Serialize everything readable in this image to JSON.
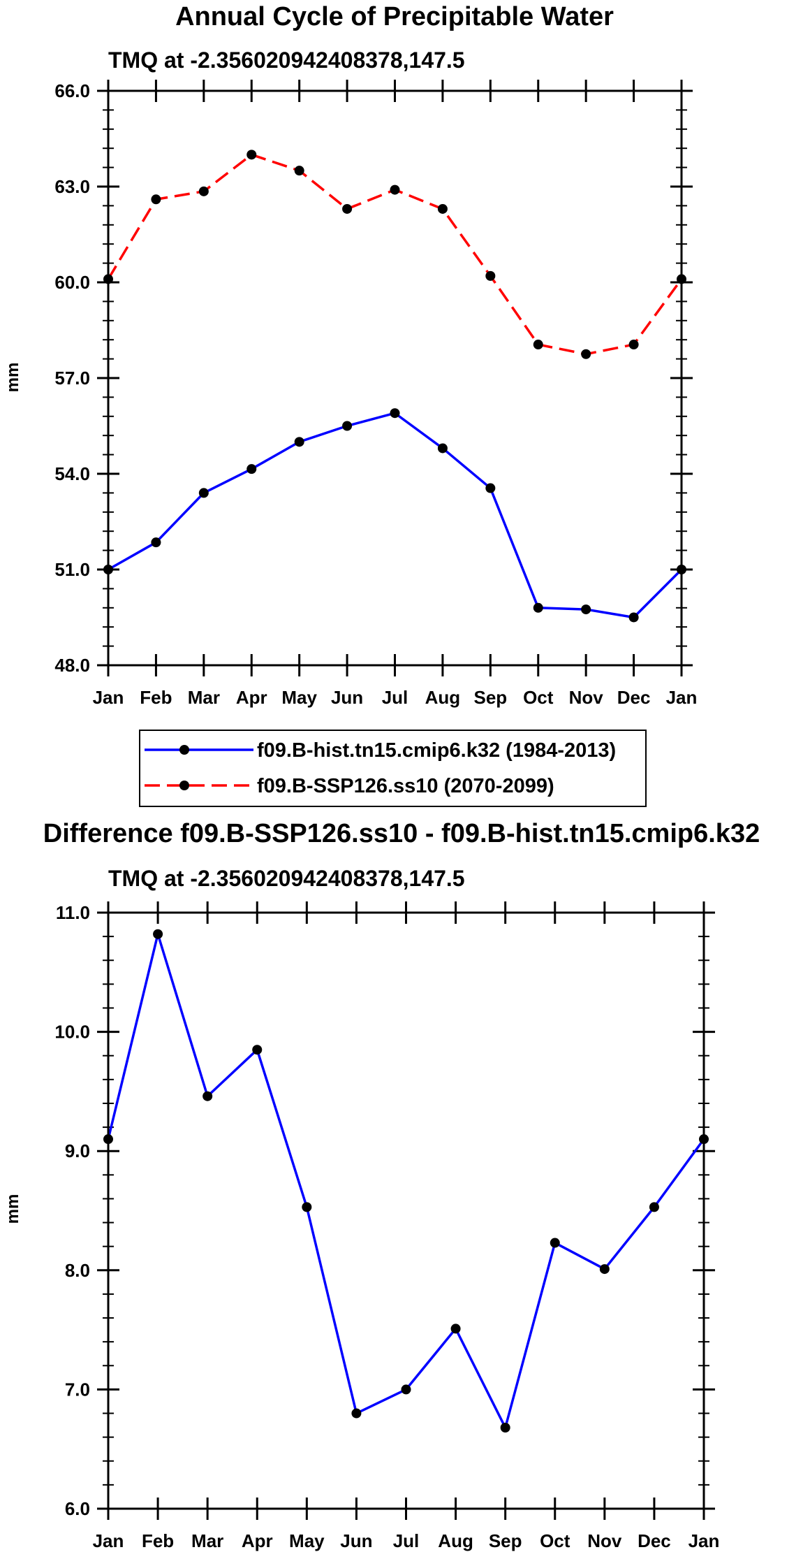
{
  "chart_data": [
    {
      "type": "line",
      "title": "Annual Cycle of Precipitable Water",
      "subtitle": "TMQ at -2.356020942408378,147.5",
      "xlabel": "",
      "ylabel": "mm",
      "ylim": [
        48.0,
        66.0
      ],
      "yticks": [
        "48.0",
        "51.0",
        "54.0",
        "57.0",
        "60.0",
        "63.0",
        "66.0"
      ],
      "categories": [
        "Jan",
        "Feb",
        "Mar",
        "Apr",
        "May",
        "Jun",
        "Jul",
        "Aug",
        "Sep",
        "Oct",
        "Nov",
        "Dec",
        "Jan"
      ],
      "series": [
        {
          "name": "f09.B-hist.tn15.cmip6.k32 (1984-2013)",
          "color": "#0000ff",
          "dash": "solid",
          "values": [
            51.0,
            51.85,
            53.4,
            54.15,
            55.0,
            55.5,
            55.9,
            54.8,
            53.55,
            49.8,
            49.75,
            49.5,
            51.0
          ]
        },
        {
          "name": "f09.B-SSP126.ss10 (2070-2099)",
          "color": "#ff0000",
          "dash": "dashed",
          "values": [
            60.1,
            62.6,
            62.85,
            64.0,
            63.5,
            62.3,
            62.9,
            62.3,
            60.2,
            58.05,
            57.75,
            58.05,
            60.1
          ]
        }
      ],
      "legend": [
        "f09.B-hist.tn15.cmip6.k32 (1984-2013)",
        "f09.B-SSP126.ss10 (2070-2099)"
      ]
    },
    {
      "type": "line",
      "title": "Difference f09.B-SSP126.ss10 - f09.B-hist.tn15.cmip6.k32",
      "subtitle": "TMQ at -2.356020942408378,147.5",
      "xlabel": "",
      "ylabel": "mm",
      "ylim": [
        6.0,
        11.0
      ],
      "yticks": [
        "6.0",
        "7.0",
        "8.0",
        "9.0",
        "10.0",
        "11.0"
      ],
      "categories": [
        "Jan",
        "Feb",
        "Mar",
        "Apr",
        "May",
        "Jun",
        "Jul",
        "Aug",
        "Sep",
        "Oct",
        "Nov",
        "Dec",
        "Jan"
      ],
      "series": [
        {
          "name": "Difference",
          "color": "#0000ff",
          "dash": "solid",
          "values": [
            9.1,
            10.82,
            9.46,
            9.85,
            8.53,
            6.8,
            7.0,
            7.51,
            6.68,
            8.23,
            8.01,
            8.53,
            9.1
          ]
        }
      ]
    }
  ]
}
